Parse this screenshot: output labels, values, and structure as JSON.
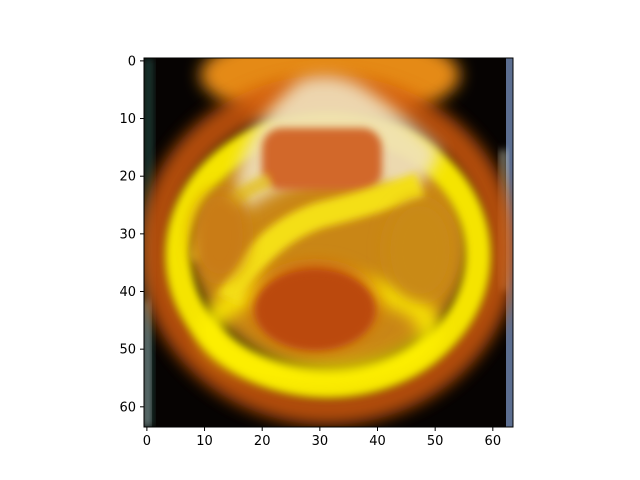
{
  "image": {
    "subject": "blurry glowing orb",
    "pixel_grid": [
      64,
      64
    ],
    "colors": {
      "background": "#060302",
      "ring": "#f5e400",
      "inner_glow": "#d88a10",
      "core": "#bf4a0e",
      "highlight": "#f2ead8",
      "left_edge": "#1a3a34",
      "right_edge": "#5c6e90"
    }
  },
  "axes": {
    "xlim": [
      -0.5,
      63.5
    ],
    "ylim": [
      63.5,
      -0.5
    ],
    "x_ticks": [
      0,
      10,
      20,
      30,
      40,
      50,
      60
    ],
    "y_ticks": [
      0,
      10,
      20,
      30,
      40,
      50,
      60
    ],
    "x_tick_labels": [
      "0",
      "10",
      "20",
      "30",
      "40",
      "50",
      "60"
    ],
    "y_tick_labels": [
      "0",
      "10",
      "20",
      "30",
      "40",
      "50",
      "60"
    ]
  }
}
